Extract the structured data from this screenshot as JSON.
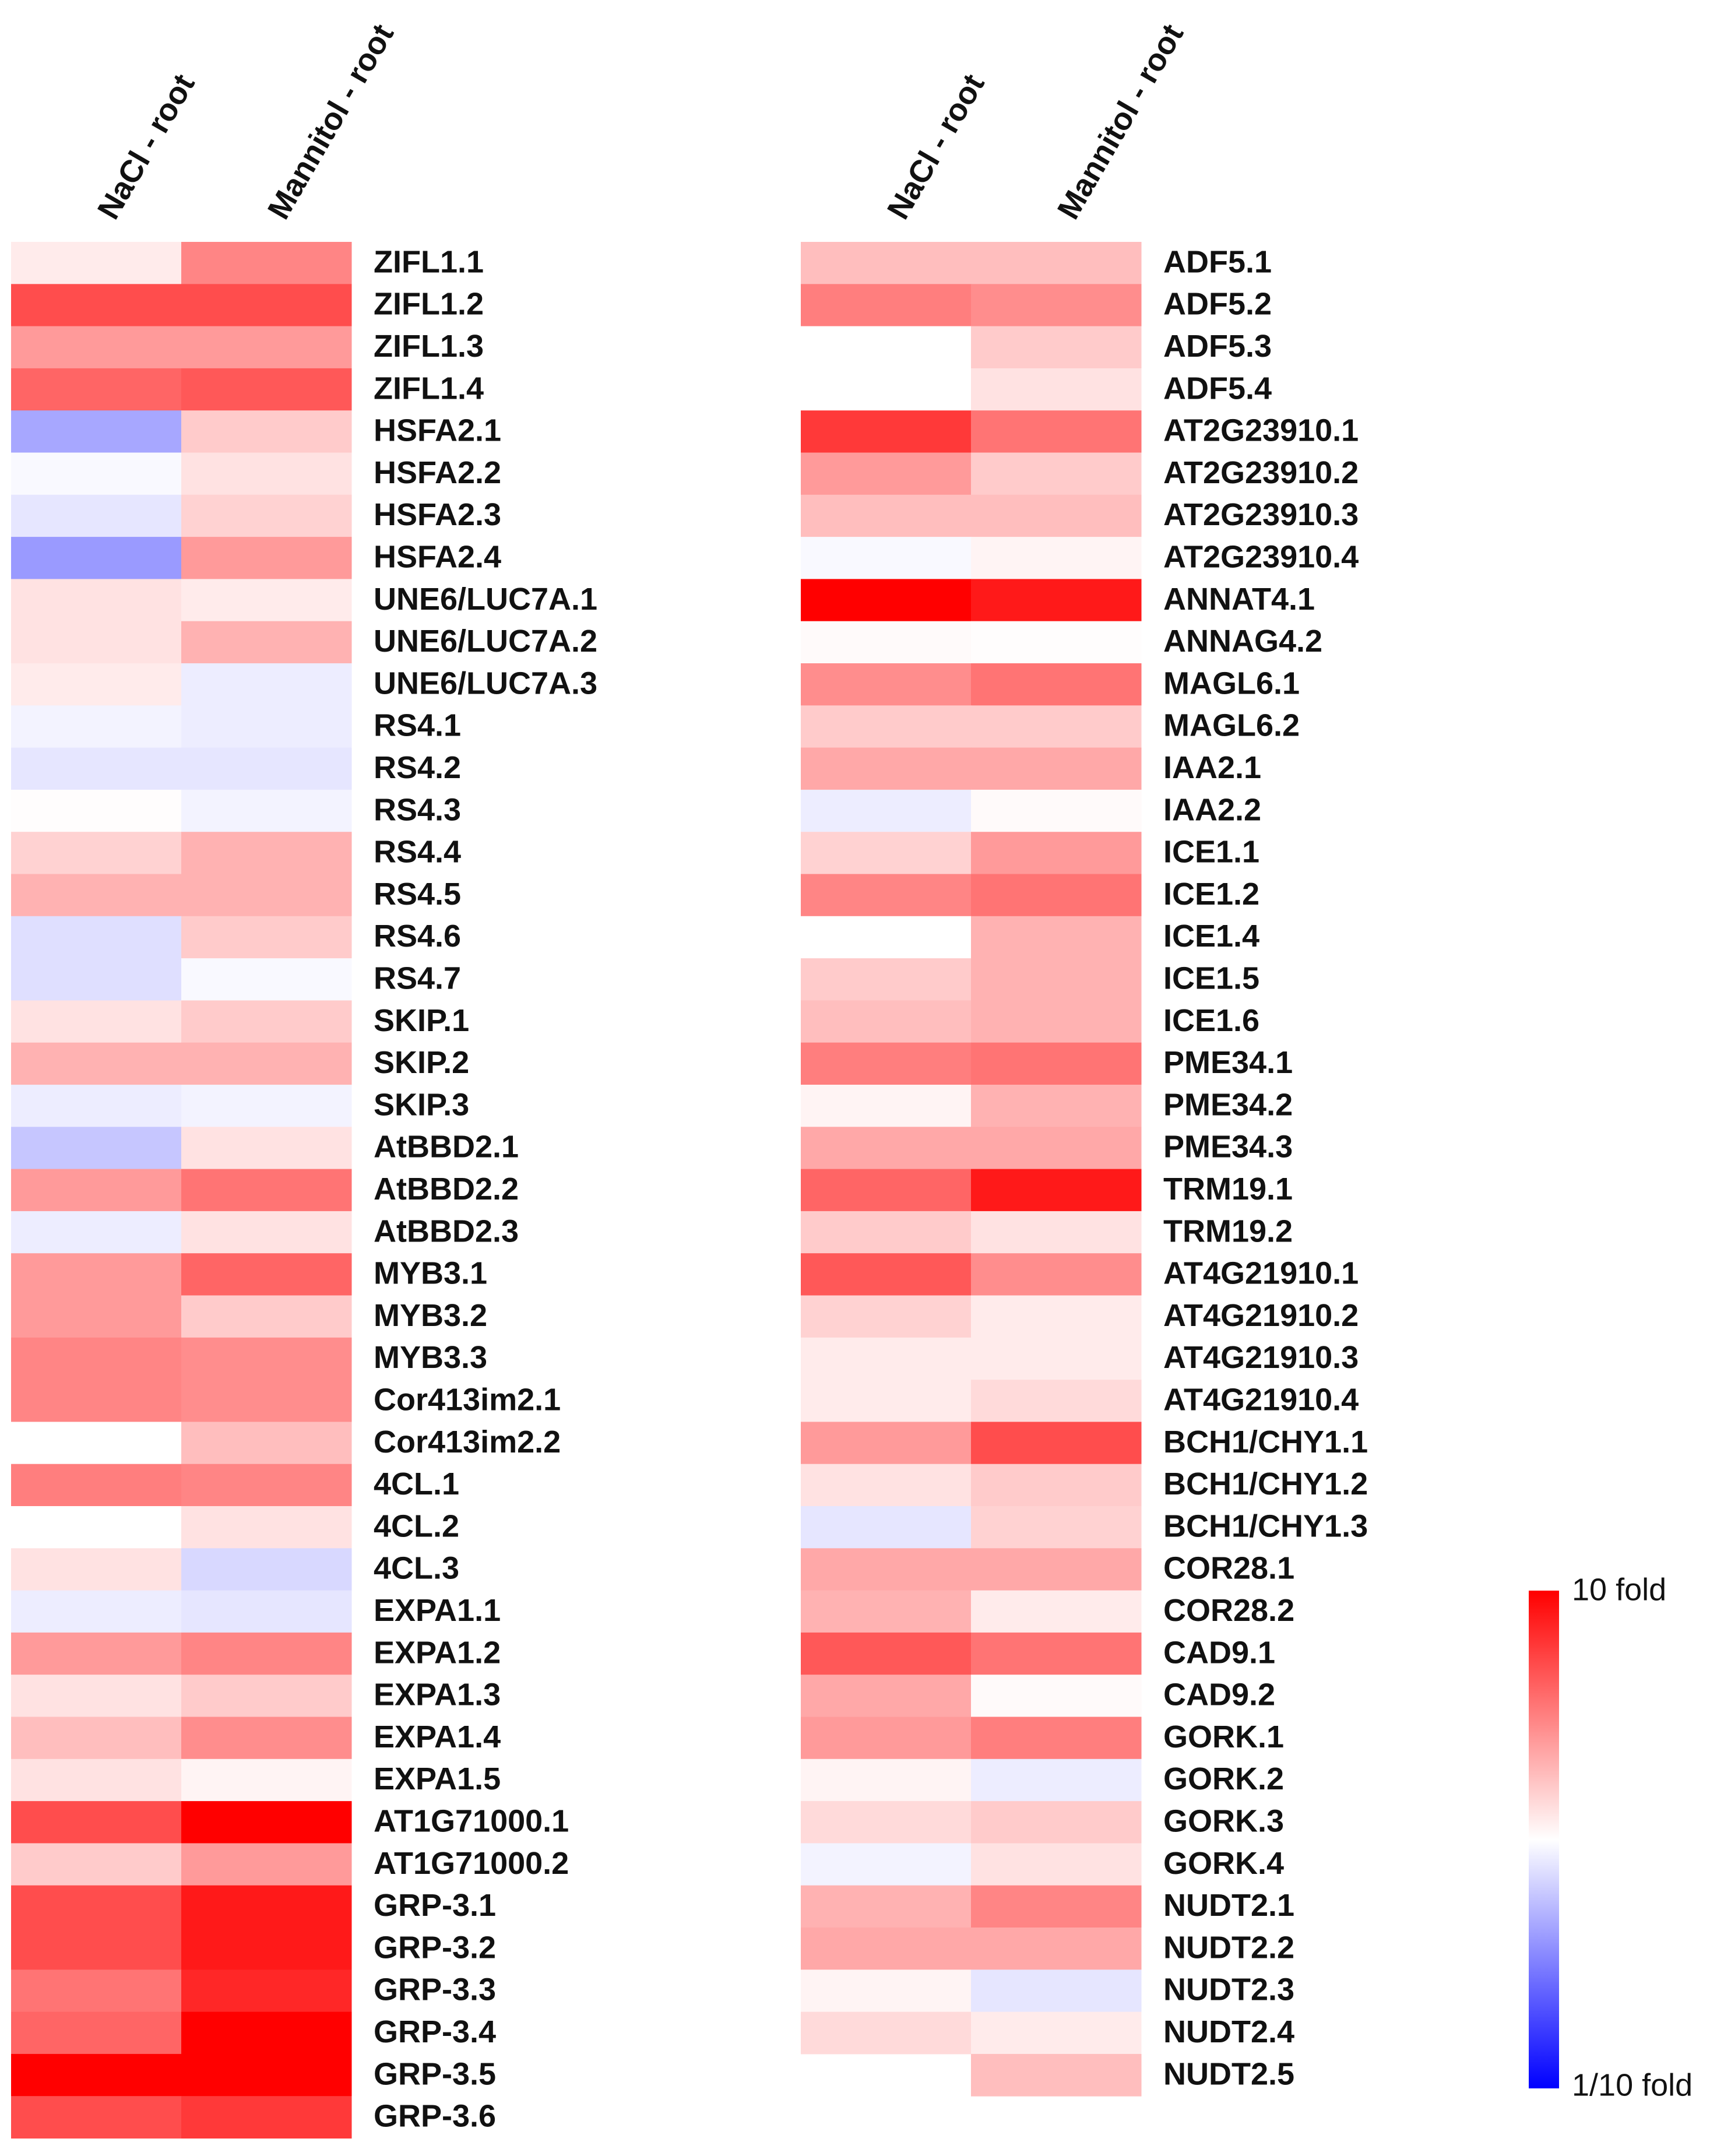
{
  "chart_data": {
    "type": "heatmap",
    "log_scale": true,
    "low_color": "#0000ff",
    "mid_color": "#ffffff",
    "high_color": "#ff0000",
    "zlim": [
      0.1,
      10
    ],
    "zticks": [
      {
        "value": 10,
        "label": "10 fold"
      },
      {
        "value": 0.1,
        "label": "1/10 fold"
      }
    ],
    "panels": [
      {
        "columns": [
          "NaCl - root",
          "Mannitol - root"
        ],
        "rows": [
          "ZIFL1.1",
          "ZIFL1.2",
          "ZIFL1.3",
          "ZIFL1.4",
          "HSFA2.1",
          "HSFA2.2",
          "HSFA2.3",
          "HSFA2.4",
          "UNE6/LUC7A.1",
          "UNE6/LUC7A.2",
          "UNE6/LUC7A.3",
          "RS4.1",
          "RS4.2",
          "RS4.3",
          "RS4.4",
          "RS4.5",
          "RS4.6",
          "RS4.7",
          "SKIP.1",
          "SKIP.2",
          "SKIP.3",
          "AtBBD2.1",
          "AtBBD2.2",
          "AtBBD2.3",
          "MYB3.1",
          "MYB3.2",
          "MYB3.3",
          "Cor413im2.1",
          "Cor413im2.2",
          "4CL.1",
          "4CL.2",
          "4CL.3",
          "EXPA1.1",
          "EXPA1.2",
          "EXPA1.3",
          "EXPA1.4",
          "EXPA1.5",
          "AT1G71000.1",
          "AT1G71000.2",
          "GRP-3.1",
          "GRP-3.2",
          "GRP-3.3",
          "GRP-3.4",
          "GRP-3.5",
          "GRP-3.6"
        ],
        "values": [
          [
            1.2,
            3
          ],
          [
            5,
            5
          ],
          [
            2.5,
            2.5
          ],
          [
            4,
            4.5
          ],
          [
            0.45,
            1.6
          ],
          [
            0.95,
            1.3
          ],
          [
            0.8,
            1.5
          ],
          [
            0.4,
            2.5
          ],
          [
            1.3,
            1.2
          ],
          [
            1.3,
            2
          ],
          [
            1.2,
            0.85
          ],
          [
            0.9,
            0.85
          ],
          [
            0.8,
            0.8
          ],
          [
            1.02,
            0.9
          ],
          [
            1.5,
            2
          ],
          [
            2,
            2
          ],
          [
            0.75,
            1.6
          ],
          [
            0.75,
            0.95
          ],
          [
            1.3,
            1.6
          ],
          [
            2,
            2
          ],
          [
            0.85,
            0.9
          ],
          [
            0.6,
            1.3
          ],
          [
            2.5,
            3.5
          ],
          [
            0.85,
            1.3
          ],
          [
            2.5,
            4
          ],
          [
            2.5,
            1.6
          ],
          [
            3,
            2.8
          ],
          [
            3,
            2.8
          ],
          [
            1,
            1.8
          ],
          [
            3.2,
            3
          ],
          [
            1,
            1.3
          ],
          [
            1.3,
            0.7
          ],
          [
            0.85,
            0.8
          ],
          [
            2.5,
            3
          ],
          [
            1.3,
            1.6
          ],
          [
            1.8,
            2.8
          ],
          [
            1.3,
            1.1
          ],
          [
            5,
            10
          ],
          [
            1.6,
            2.5
          ],
          [
            5,
            8
          ],
          [
            5,
            8
          ],
          [
            3.5,
            7
          ],
          [
            4,
            10
          ],
          [
            10,
            10
          ],
          [
            5,
            6
          ]
        ]
      },
      {
        "columns": [
          "NaCl - root",
          "Mannitol - root"
        ],
        "rows": [
          "ADF5.1",
          "ADF5.2",
          "ADF5.3",
          "ADF5.4",
          "AT2G23910.1",
          "AT2G23910.2",
          "AT2G23910.3",
          "AT2G23910.4",
          "ANNAT4.1",
          "ANNAG4.2",
          "MAGL6.1",
          "MAGL6.2",
          "IAA2.1",
          "IAA2.2",
          "ICE1.1",
          "ICE1.2",
          "ICE1.4",
          "ICE1.5",
          "ICE1.6",
          "PME34.1",
          "PME34.2",
          "PME34.3",
          "TRM19.1",
          "TRM19.2",
          "AT4G21910.1",
          "AT4G21910.2",
          "AT4G21910.3",
          "AT4G21910.4",
          "BCH1/CHY1.1",
          "BCH1/CHY1.2",
          "BCH1/CHY1.3",
          "COR28.1",
          "COR28.2",
          "CAD9.1",
          "CAD9.2",
          "GORK.1",
          "GORK.2",
          "GORK.3",
          "GORK.4",
          "NUDT2.1",
          "NUDT2.2",
          "NUDT2.3",
          "NUDT2.4",
          "NUDT2.5"
        ],
        "values": [
          [
            1.8,
            1.8
          ],
          [
            3.2,
            2.8
          ],
          [
            1,
            1.6
          ],
          [
            1,
            1.3
          ],
          [
            6,
            3.5
          ],
          [
            2.5,
            1.6
          ],
          [
            1.8,
            1.8
          ],
          [
            0.95,
            1.1
          ],
          [
            10,
            8
          ],
          [
            1.05,
            1.02
          ],
          [
            2.8,
            3.5
          ],
          [
            1.6,
            1.6
          ],
          [
            2.2,
            2.2
          ],
          [
            0.85,
            1.05
          ],
          [
            1.5,
            2.5
          ],
          [
            3,
            3.5
          ],
          [
            1,
            2
          ],
          [
            1.6,
            2
          ],
          [
            1.8,
            2
          ],
          [
            3.2,
            3.5
          ],
          [
            1.1,
            2
          ],
          [
            2.2,
            2.2
          ],
          [
            4,
            8
          ],
          [
            1.6,
            1.3
          ],
          [
            4.5,
            2.8
          ],
          [
            1.5,
            1.2
          ],
          [
            1.2,
            1.2
          ],
          [
            1.2,
            1.4
          ],
          [
            2.5,
            5
          ],
          [
            1.3,
            1.6
          ],
          [
            0.8,
            1.5
          ],
          [
            2.2,
            2.2
          ],
          [
            2,
            1.2
          ],
          [
            4.5,
            3.5
          ],
          [
            2.2,
            1.05
          ],
          [
            2.5,
            3.2
          ],
          [
            1.1,
            0.85
          ],
          [
            1.4,
            1.6
          ],
          [
            0.9,
            1.3
          ],
          [
            2,
            3
          ],
          [
            2.2,
            2.2
          ],
          [
            1.1,
            0.8
          ],
          [
            1.4,
            1.2
          ],
          [
            null,
            1.8
          ]
        ]
      }
    ]
  }
}
